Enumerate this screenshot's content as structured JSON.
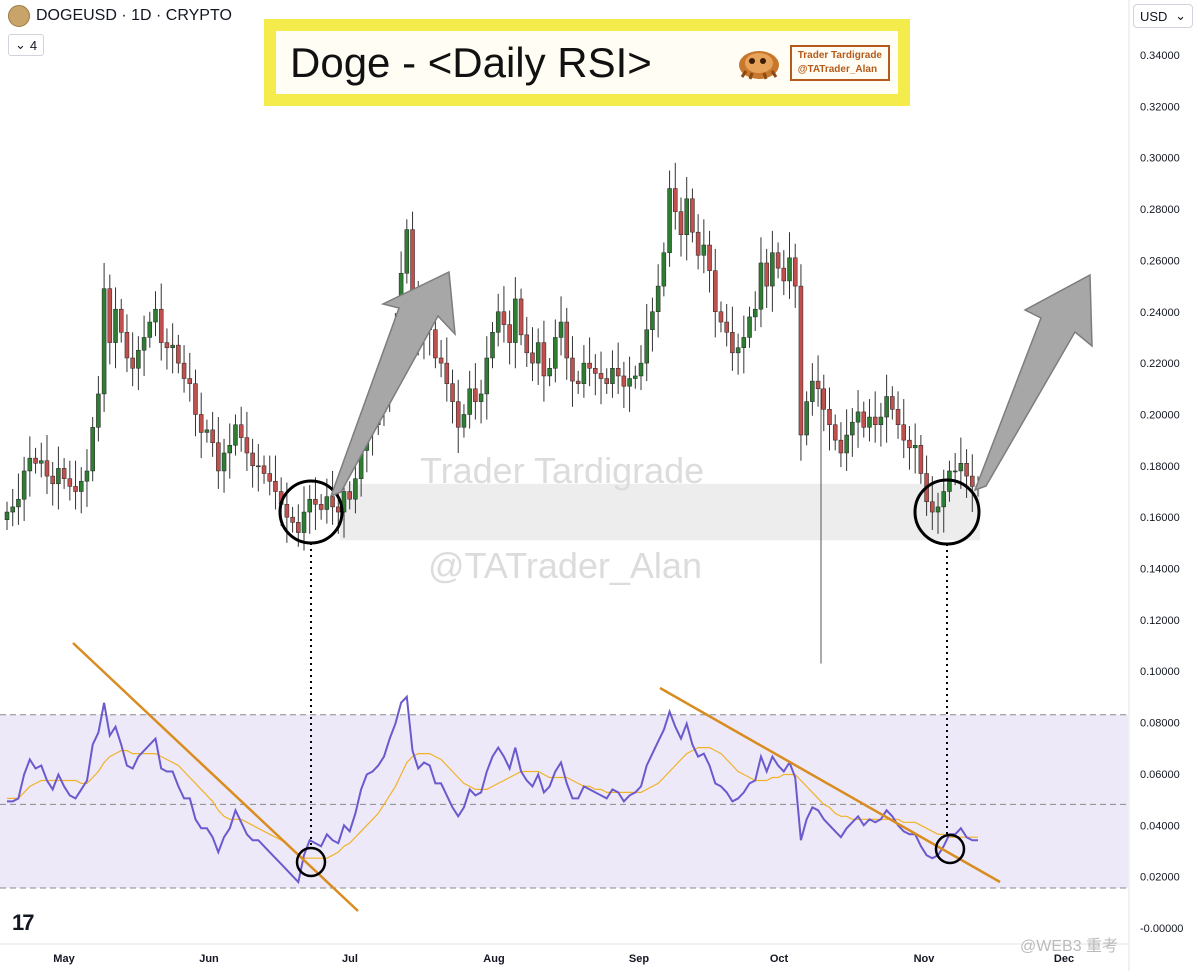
{
  "header": {
    "symbol_title": "DOGEUSD · 1D · CRYPTO",
    "interval_value": "4",
    "currency": "USD"
  },
  "banner": {
    "title": "Doge - <Daily RSI>",
    "brand_line1": "Trader Tardigrade",
    "brand_line2": "@TATrader_Alan"
  },
  "watermark": {
    "line1": "Trader Tardigrade",
    "line2": "@TATrader_Alan"
  },
  "corner_watermark": "@WEB3 重考",
  "tv_logo": "17",
  "colors": {
    "up_candle": "#26a69a",
    "up_candle_display": "#2e7d32",
    "down_candle": "#c0504d",
    "rsi_line": "#6a5acd",
    "rsi_ma": "#f2b227",
    "trendline": "#d98c1f",
    "rsi_band": "#ede9f8",
    "support_zone": "#e8e8e8"
  },
  "chart_data": [
    {
      "type": "candlestick",
      "title": "DOGEUSD · 1D · CRYPTO",
      "x_months": [
        "May",
        "Jun",
        "Jul",
        "Aug",
        "Sep",
        "Oct",
        "Nov",
        "Dec"
      ],
      "y_ticks": [
        0.34,
        0.32,
        0.3,
        0.28,
        0.26,
        0.24,
        0.22,
        0.2,
        0.18,
        0.16,
        0.14,
        0.12,
        0.1,
        0.08,
        0.06,
        0.04,
        0.02,
        -0.0
      ],
      "y_tick_labels": [
        "0.34000",
        "0.32000",
        "0.30000",
        "0.28000",
        "0.26000",
        "0.24000",
        "0.22000",
        "0.20000",
        "0.18000",
        "0.16000",
        "0.14000",
        "0.12000",
        "0.10000",
        "0.08000",
        "0.06000",
        "0.04000",
        "0.02000",
        "-0.00000"
      ],
      "ylim": [
        -0.002,
        0.345
      ],
      "closes": [
        0.162,
        0.164,
        0.167,
        0.178,
        0.183,
        0.181,
        0.182,
        0.176,
        0.173,
        0.179,
        0.175,
        0.172,
        0.17,
        0.174,
        0.178,
        0.195,
        0.208,
        0.249,
        0.228,
        0.241,
        0.232,
        0.222,
        0.218,
        0.225,
        0.23,
        0.236,
        0.241,
        0.228,
        0.226,
        0.227,
        0.22,
        0.214,
        0.212,
        0.2,
        0.193,
        0.194,
        0.189,
        0.178,
        0.185,
        0.188,
        0.196,
        0.191,
        0.185,
        0.18,
        0.18,
        0.177,
        0.174,
        0.17,
        0.165,
        0.16,
        0.158,
        0.154,
        0.162,
        0.167,
        0.165,
        0.163,
        0.168,
        0.164,
        0.162,
        0.17,
        0.167,
        0.175,
        0.186,
        0.194,
        0.196,
        0.201,
        0.208,
        0.221,
        0.234,
        0.255,
        0.272,
        0.242,
        0.23,
        0.236,
        0.233,
        0.222,
        0.22,
        0.212,
        0.205,
        0.195,
        0.2,
        0.21,
        0.205,
        0.208,
        0.222,
        0.232,
        0.24,
        0.235,
        0.228,
        0.245,
        0.231,
        0.224,
        0.22,
        0.228,
        0.215,
        0.218,
        0.23,
        0.236,
        0.222,
        0.213,
        0.212,
        0.22,
        0.218,
        0.216,
        0.214,
        0.212,
        0.218,
        0.215,
        0.211,
        0.214,
        0.215,
        0.22,
        0.233,
        0.24,
        0.25,
        0.263,
        0.288,
        0.279,
        0.27,
        0.284,
        0.271,
        0.262,
        0.266,
        0.256,
        0.24,
        0.236,
        0.232,
        0.224,
        0.226,
        0.23,
        0.238,
        0.241,
        0.259,
        0.25,
        0.263,
        0.257,
        0.252,
        0.261,
        0.25,
        0.192,
        0.205,
        0.213,
        0.21,
        0.202,
        0.196,
        0.19,
        0.185,
        0.192,
        0.197,
        0.201,
        0.195,
        0.199,
        0.196,
        0.199,
        0.207,
        0.202,
        0.196,
        0.19,
        0.187,
        0.188,
        0.177,
        0.166,
        0.162,
        0.164,
        0.17,
        0.178,
        0.178,
        0.181,
        0.176,
        0.172,
        0.172
      ],
      "rsi": {
        "ylim": [
          0,
          100
        ],
        "overbought": 70,
        "midline": 50,
        "oversold": 30,
        "values": [
          51,
          51,
          52,
          60,
          65,
          62,
          63,
          58,
          55,
          60,
          56,
          53,
          52,
          55,
          58,
          70,
          74,
          84,
          73,
          76,
          70,
          63,
          62,
          66,
          68,
          70,
          72,
          62,
          61,
          61,
          56,
          52,
          52,
          45,
          42,
          42,
          39,
          34,
          39,
          42,
          48,
          44,
          40,
          38,
          38,
          36,
          34,
          32,
          30,
          28,
          26,
          24,
          33,
          38,
          37,
          36,
          40,
          38,
          37,
          43,
          41,
          47,
          55,
          60,
          61,
          63,
          66,
          72,
          77,
          84,
          86,
          68,
          62,
          64,
          63,
          57,
          57,
          53,
          49,
          46,
          49,
          55,
          53,
          54,
          61,
          66,
          69,
          66,
          62,
          69,
          61,
          58,
          56,
          60,
          54,
          56,
          61,
          64,
          57,
          52,
          52,
          56,
          55,
          54,
          53,
          52,
          55,
          54,
          51,
          53,
          54,
          56,
          63,
          67,
          71,
          75,
          81,
          76,
          72,
          77,
          70,
          66,
          67,
          63,
          57,
          56,
          54,
          51,
          52,
          54,
          57,
          58,
          66,
          61,
          66,
          63,
          61,
          64,
          59,
          38,
          45,
          49,
          48,
          45,
          43,
          41,
          39,
          42,
          44,
          46,
          43,
          45,
          44,
          45,
          48,
          46,
          43,
          41,
          40,
          40,
          36,
          33,
          32,
          33,
          36,
          40,
          40,
          42,
          39,
          38,
          38
        ],
        "ma_values": [
          52,
          52,
          52,
          54,
          56,
          57,
          58,
          58,
          58,
          58,
          58,
          58,
          58,
          57,
          57,
          59,
          61,
          64,
          66,
          67,
          68,
          68,
          67,
          67,
          67,
          67,
          67,
          66,
          65,
          64,
          63,
          61,
          59,
          57,
          55,
          53,
          51,
          48,
          46,
          45,
          45,
          45,
          44,
          43,
          42,
          41,
          40,
          39,
          38,
          37,
          35,
          33,
          32,
          32,
          32,
          32,
          32,
          33,
          34,
          36,
          37,
          39,
          41,
          43,
          45,
          47,
          50,
          53,
          56,
          60,
          64,
          66,
          67,
          67,
          67,
          66,
          65,
          63,
          61,
          59,
          57,
          56,
          55,
          55,
          55,
          56,
          57,
          58,
          59,
          60,
          61,
          61,
          61,
          61,
          60,
          59,
          59,
          59,
          59,
          58,
          57,
          56,
          56,
          55,
          55,
          54,
          54,
          54,
          54,
          54,
          54,
          54,
          55,
          56,
          57,
          59,
          61,
          63,
          65,
          67,
          68,
          69,
          69,
          69,
          68,
          67,
          65,
          63,
          61,
          60,
          59,
          58,
          58,
          58,
          59,
          59,
          60,
          60,
          60,
          58,
          56,
          54,
          52,
          50,
          49,
          47,
          46,
          46,
          45,
          45,
          45,
          45,
          45,
          45,
          45,
          45,
          45,
          44,
          44,
          44,
          43,
          42,
          41,
          40,
          40,
          39,
          39,
          39,
          39,
          39,
          39
        ]
      }
    }
  ]
}
